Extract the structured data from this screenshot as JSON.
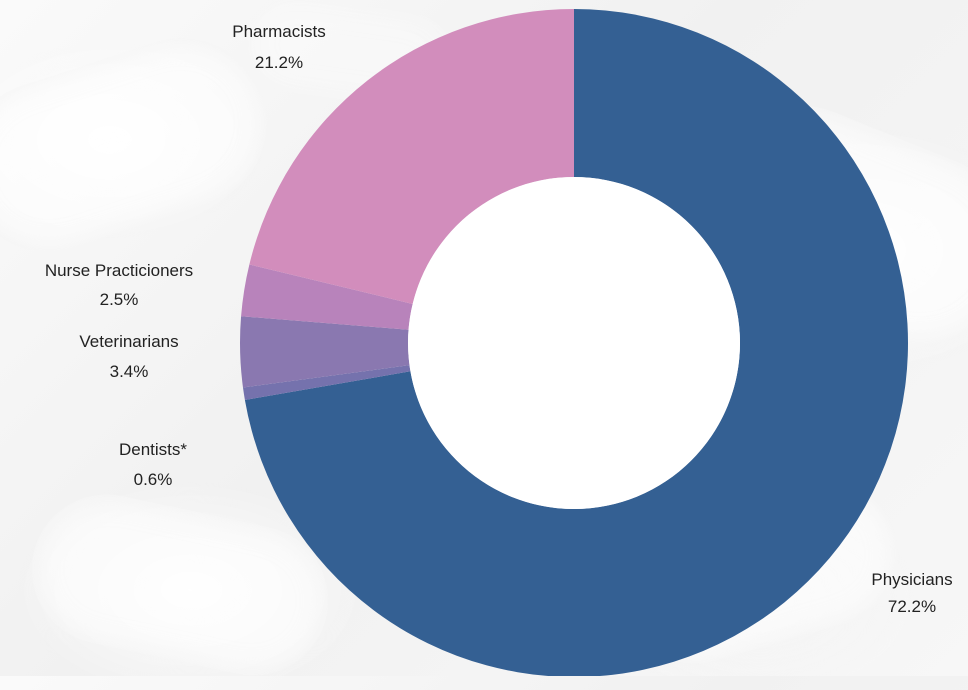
{
  "chart_data": {
    "type": "pie",
    "style": "donut",
    "slices": [
      {
        "label": "Physicians",
        "percent_label": "72.2%",
        "value": 72.2,
        "color": "#346093"
      },
      {
        "label": "Dentists*",
        "percent_label": "0.6%",
        "value": 0.6,
        "color": "#7572ad"
      },
      {
        "label": "Veterinarians",
        "percent_label": "3.4%",
        "value": 3.4,
        "color": "#8a78b0"
      },
      {
        "label": "Nurse Practicioners",
        "percent_label": "2.5%",
        "value": 2.5,
        "color": "#b883bb"
      },
      {
        "label": "Pharmacists",
        "percent_label": "21.2%",
        "value": 21.2,
        "color": "#d28dbc"
      }
    ]
  }
}
